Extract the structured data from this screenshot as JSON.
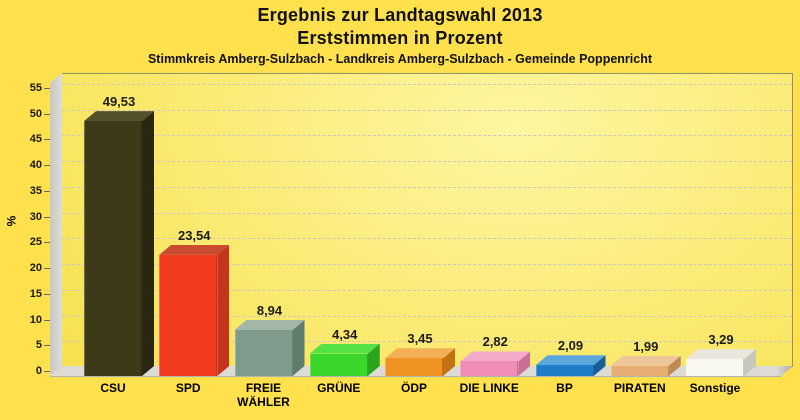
{
  "header": {
    "title_line1": "Ergebnis zur Landtagswahl 2013",
    "title_line2": "Erststimmen in Prozent",
    "subtitle": "Stimmkreis Amberg-Sulzbach - Landkreis Amberg-Sulzbach - Gemeinde Poppenricht"
  },
  "axis": {
    "ylabel": "%",
    "yticks": [
      "0",
      "5",
      "10",
      "15",
      "20",
      "25",
      "30",
      "35",
      "40",
      "45",
      "50",
      "55"
    ]
  },
  "chart_data": {
    "type": "bar",
    "title": "Ergebnis zur Landtagswahl 2013 Erststimmen in Prozent",
    "subtitle": "Stimmkreis Amberg-Sulzbach - Landkreis Amberg-Sulzbach - Gemeinde Poppenricht",
    "xlabel": "",
    "ylabel": "%",
    "ylim": [
      0,
      55
    ],
    "ytick_step": 5,
    "grid": "horizontal-dashed",
    "legend_position": "none",
    "style": "3d-bars",
    "categories": [
      "CSU",
      "SPD",
      "FREIE WÄHLER",
      "GRÜNE",
      "ÖDP",
      "DIE LINKE",
      "BP",
      "PIRATEN",
      "Sonstige"
    ],
    "values": [
      49.53,
      23.54,
      8.94,
      4.34,
      3.45,
      2.82,
      2.09,
      1.99,
      3.29
    ],
    "value_labels": [
      "49,53",
      "23,54",
      "8,94",
      "4,34",
      "3,45",
      "2,82",
      "2,09",
      "1,99",
      "3,29"
    ],
    "bar_colors": [
      {
        "party": "CSU",
        "front": "#3E3A19",
        "top": "#55502C",
        "side": "#2A2710"
      },
      {
        "party": "SPD",
        "front": "#F23B1E",
        "top": "#C94C30",
        "side": "#C5341B"
      },
      {
        "party": "FREIE WÄHLER",
        "front": "#7E9B8B",
        "top": "#A2B7A8",
        "side": "#5F7D6D"
      },
      {
        "party": "GRÜNE",
        "front": "#3AD62A",
        "top": "#55E344",
        "side": "#2BA41E"
      },
      {
        "party": "ÖDP",
        "front": "#EF9322",
        "top": "#F3B057",
        "side": "#C27214"
      },
      {
        "party": "DIE LINKE",
        "front": "#F18CB7",
        "top": "#F4ABCA",
        "side": "#C86E98"
      },
      {
        "party": "BP",
        "front": "#1F7CC7",
        "top": "#5CA6DE",
        "side": "#175E97"
      },
      {
        "party": "PIRATEN",
        "front": "#E7AD72",
        "top": "#EDC69C",
        "side": "#BE8A55"
      },
      {
        "party": "Sonstige",
        "front": "#F8F7F0",
        "top": "#E9E7DB",
        "side": "#C9C7BA"
      }
    ]
  },
  "colors": {
    "page_background": "#FFE14E",
    "plot_gradient_light": "#FDF6A2",
    "plot_gradient_dark": "#F7DF49",
    "wall": "#DAD8D3",
    "floor": "#DDDBD6",
    "gridline": "#CBC9BF",
    "frame_border": "#92926A",
    "text": "#111111"
  }
}
